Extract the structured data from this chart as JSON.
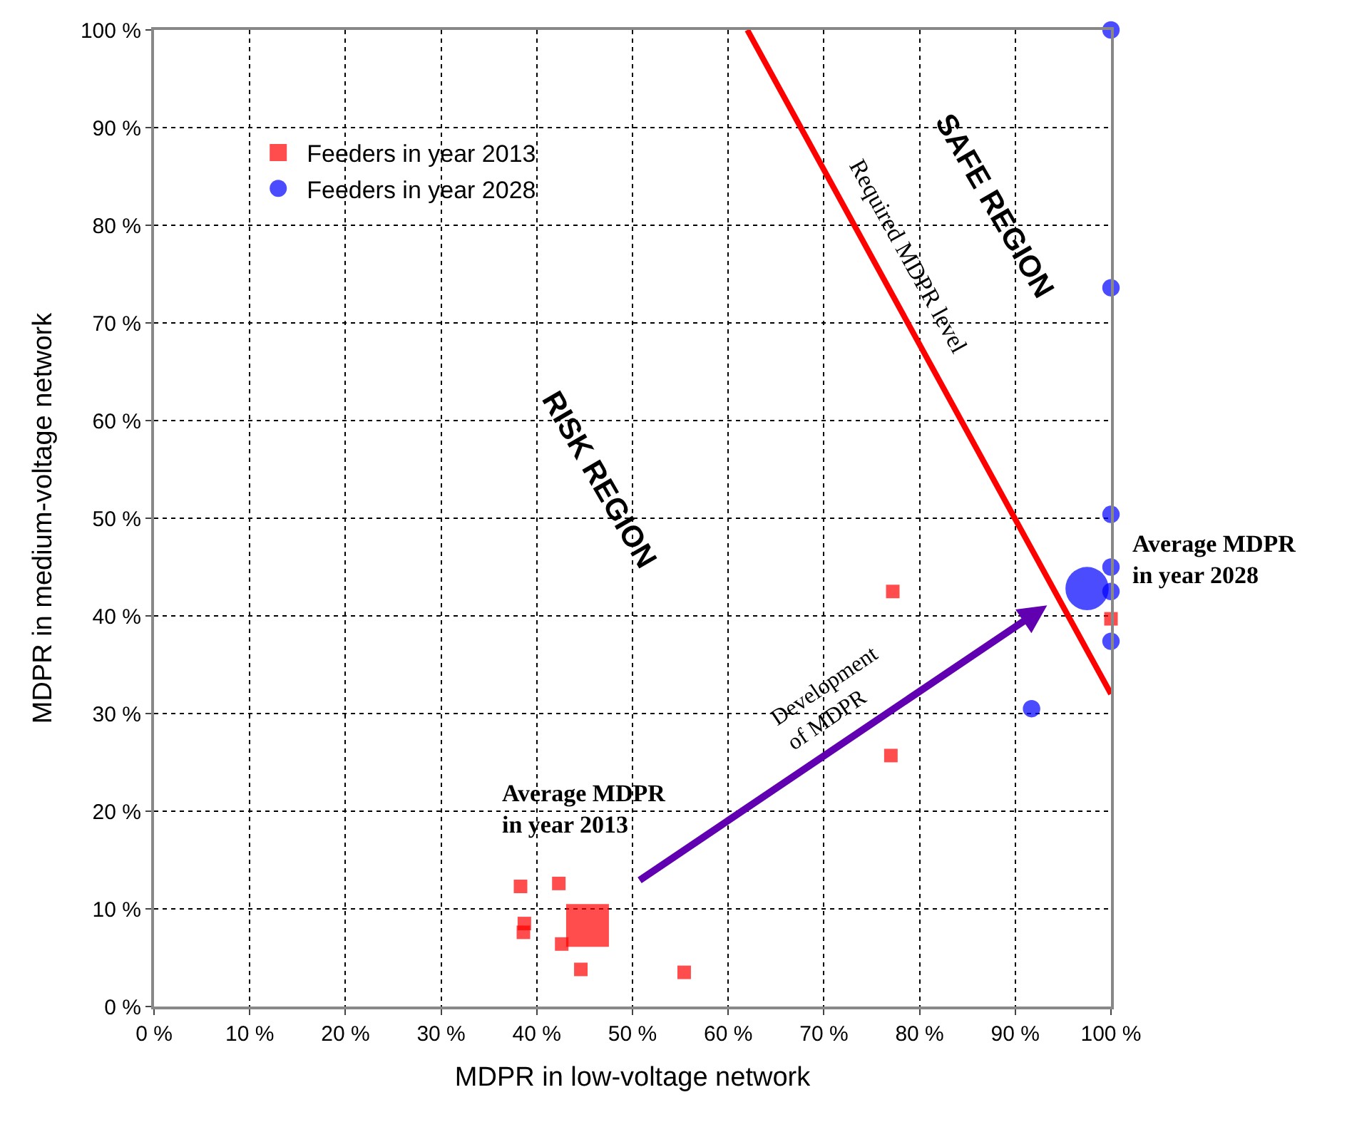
{
  "chart_data": {
    "type": "scatter",
    "xlabel": "MDPR in low-voltage network",
    "ylabel": "MDPR in medium-voltage network",
    "xlim": [
      0,
      100
    ],
    "ylim": [
      0,
      100
    ],
    "xticks": [
      {
        "value": 0,
        "label": "0 %"
      },
      {
        "value": 10,
        "label": "10 %"
      },
      {
        "value": 20,
        "label": "20 %"
      },
      {
        "value": 30,
        "label": "30 %"
      },
      {
        "value": 40,
        "label": "40 %"
      },
      {
        "value": 50,
        "label": "50 %"
      },
      {
        "value": 60,
        "label": "60 %"
      },
      {
        "value": 70,
        "label": "70 %"
      },
      {
        "value": 80,
        "label": "80 %"
      },
      {
        "value": 90,
        "label": "90 %"
      },
      {
        "value": 100,
        "label": "100 %"
      }
    ],
    "yticks": [
      {
        "value": 0,
        "label": "0 %"
      },
      {
        "value": 10,
        "label": "10 %"
      },
      {
        "value": 20,
        "label": "20 %"
      },
      {
        "value": 30,
        "label": "30 %"
      },
      {
        "value": 40,
        "label": "40 %"
      },
      {
        "value": 50,
        "label": "50 %"
      },
      {
        "value": 60,
        "label": "60 %"
      },
      {
        "value": 70,
        "label": "70 %"
      },
      {
        "value": 80,
        "label": "80 %"
      },
      {
        "value": 90,
        "label": "90 %"
      },
      {
        "value": 100,
        "label": "100 %"
      }
    ],
    "grid": true,
    "legend": "top left",
    "series": [
      {
        "name": "Feeders in year 2013",
        "marker": "square",
        "color": "#ff0000",
        "x": [
          38.3,
          42.3,
          38.7,
          38.6,
          42.6,
          44.6,
          55.4,
          45.3,
          77.2,
          77.0,
          100
        ],
        "values": [
          12.3,
          12.6,
          8.5,
          7.6,
          6.4,
          3.8,
          3.5,
          8.3,
          42.5,
          25.7,
          39.7
        ],
        "sizes": [
          0.1,
          0.1,
          0.1,
          0.1,
          0.1,
          0.1,
          0.1,
          1,
          0.1,
          0.1,
          0.1
        ]
      },
      {
        "name": "Feeders in year 2028",
        "marker": "circle",
        "color": "#0000ff",
        "x": [
          100,
          100,
          100,
          100,
          100,
          100,
          91.7,
          97.5
        ],
        "values": [
          100,
          73.6,
          50.4,
          45.0,
          42.5,
          37.4,
          30.5,
          42.8
        ],
        "sizes": [
          0.13,
          0.13,
          0.13,
          0.13,
          0.13,
          0.13,
          0.13,
          0.8
        ]
      },
      {
        "name": "Required MDPR level",
        "type": "line",
        "color": "#ff0000",
        "x": [
          62,
          100
        ],
        "values": [
          100,
          32
        ]
      }
    ],
    "annotations": [
      "RISK REGION",
      "SAFE REGION",
      "Average MDPR\nin year 2013",
      {
        "text": "Average MDPR\nin year 2028",
        "x": 97.5,
        "y": 42.8
      },
      "Development\nof MDPR"
    ]
  }
}
